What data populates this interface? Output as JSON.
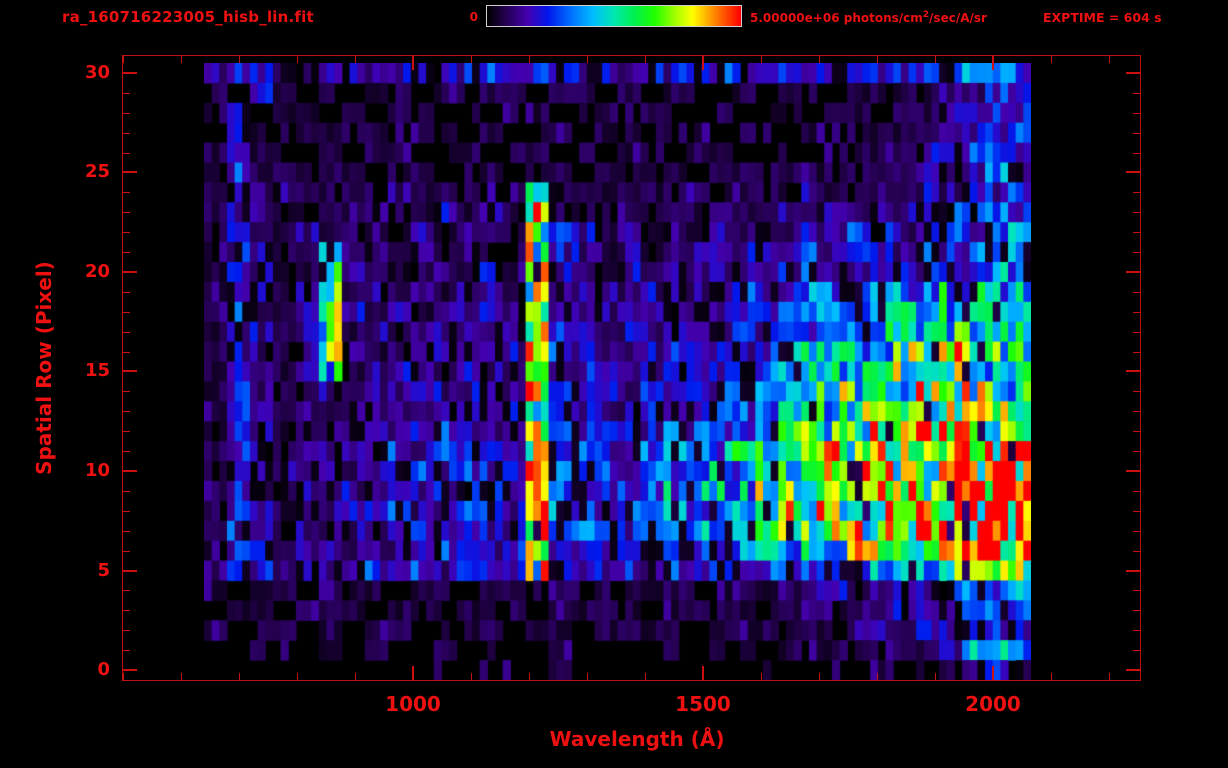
{
  "header": {
    "title": "ra_160716223005_hisb_lin.fit",
    "exptime": "EXPTIME = 604 s",
    "colorbar": {
      "min_label": "0",
      "max_prefix": "5.00000e+06 photons/cm",
      "max_sup": "2",
      "max_suffix": "/sec/A/sr"
    }
  },
  "axes": {
    "xlabel": "Wavelength (Å)",
    "ylabel": "Spatial Row (Pixel)",
    "x_ticks": [
      1000,
      1500,
      2000
    ],
    "y_ticks": [
      0,
      5,
      10,
      15,
      20,
      25,
      30
    ],
    "x_minor_step": 100,
    "y_minor_step": 1,
    "x_range": [
      498,
      2255
    ],
    "y_range": [
      -0.55,
      30.9
    ],
    "accent_color": "#ee1111",
    "frame_color": "#c01010"
  },
  "chart_data": {
    "type": "heatmap",
    "title": "ra_160716223005_hisb_lin.fit",
    "xlabel": "Wavelength (Å)",
    "ylabel": "Spatial Row (Pixel)",
    "x_range": [
      640,
      2066
    ],
    "y_range": [
      0,
      30
    ],
    "exposure_time_s": 604,
    "colorbar": {
      "min": 0,
      "max": 5000000,
      "max_label": "5.00000e+06",
      "units": "photons/cm2/sec/A/sr"
    },
    "colormap_stops": [
      [
        0.0,
        "#000000"
      ],
      [
        0.07,
        "#24004e"
      ],
      [
        0.16,
        "#4400b0"
      ],
      [
        0.24,
        "#0018ee"
      ],
      [
        0.33,
        "#0070ff"
      ],
      [
        0.42,
        "#00c0ff"
      ],
      [
        0.5,
        "#00e8b0"
      ],
      [
        0.58,
        "#00f050"
      ],
      [
        0.66,
        "#20ff00"
      ],
      [
        0.74,
        "#a0ff00"
      ],
      [
        0.81,
        "#ffff00"
      ],
      [
        0.89,
        "#ff9000"
      ],
      [
        1.0,
        "#ff0000"
      ]
    ],
    "grid": {
      "x_start": 640,
      "x_step": 39.6,
      "n_cols": 36,
      "rows_order": "spatial row 30 (top) to 0 (bottom)",
      "value_scale": "hex digit 0-f maps to 0-1 of colorbar max",
      "values": [
        "233323323233333333233332333433334454",
        "103101011010110110101101011011112243",
        "130110101101011011011010110110112233",
        "031011110110101101101101101011122333",
        "131101011011011010110110110111122334",
        "131111101101101101111011111111223344",
        "131211112111219211111211112112122334",
        "13211212112121b211211121121222223344",
        "13212121121221b321212122222233233445",
        "13211612121221a321212222223233233445",
        "13211821212131a321222222233334334455",
        "13212812121221a322222223334455556665",
        "13212921212222a322222233345566667766",
        "13212912122222a332223233345667778877",
        "13212821222222a33222333345677888a987",
        "13212712222222a33223333345678899a987",
        "13211212222222a4322333345678899aa987",
        "13212122222222a432233344567899aaa988",
        "13212222223223a4333344456789aabba998",
        "13212222323333a443344556789abbbccddf",
        "13222222333333a443344566789abbccddef",
        "13222222333333a44444556689aabbccddef",
        "13212222323333a44344556689aabccddeef",
        "13212222233333a443344556789abbbcddef",
        "13212222223323a4333344556789aaabccde",
        "23322223232333a4333333344455666789ae",
        "101101110110111111111111112222233445",
        "011011101101110111101111112122223344",
        "101101011011101101111011111122223334",
        "001001010010100100001011011111112675",
        "000000000000000100000000000001011232"
      ]
    },
    "features": [
      {
        "name": "bright-emission-line",
        "wavelength": 1216,
        "rows": [
          5,
          24
        ],
        "appearance": "green vertical line"
      },
      {
        "name": "curved-emission-arc",
        "wavelength": 870,
        "rows": [
          15,
          21
        ],
        "appearance": "short cyan-green arc"
      },
      {
        "name": "bright-continuum-band",
        "rows": [
          6,
          12
        ],
        "wavelengths": [
          1450,
          2060
        ],
        "appearance": "green to yellow-orange band, brightest near 2000"
      },
      {
        "name": "upper-continuum-band",
        "rows": [
          13,
          19
        ],
        "wavelengths": [
          1650,
          2060
        ],
        "appearance": "green band"
      },
      {
        "name": "detector-right-edge",
        "wavelength": 2055,
        "rows": [
          1,
          30
        ],
        "appearance": "bright column with red streak at rows 5-11"
      },
      {
        "name": "faint-vertical-line",
        "wavelength": 700,
        "rows": [
          5,
          30
        ],
        "appearance": "faint blue line"
      },
      {
        "name": "background",
        "appearance": "dark purple speckle noise over black"
      }
    ]
  }
}
